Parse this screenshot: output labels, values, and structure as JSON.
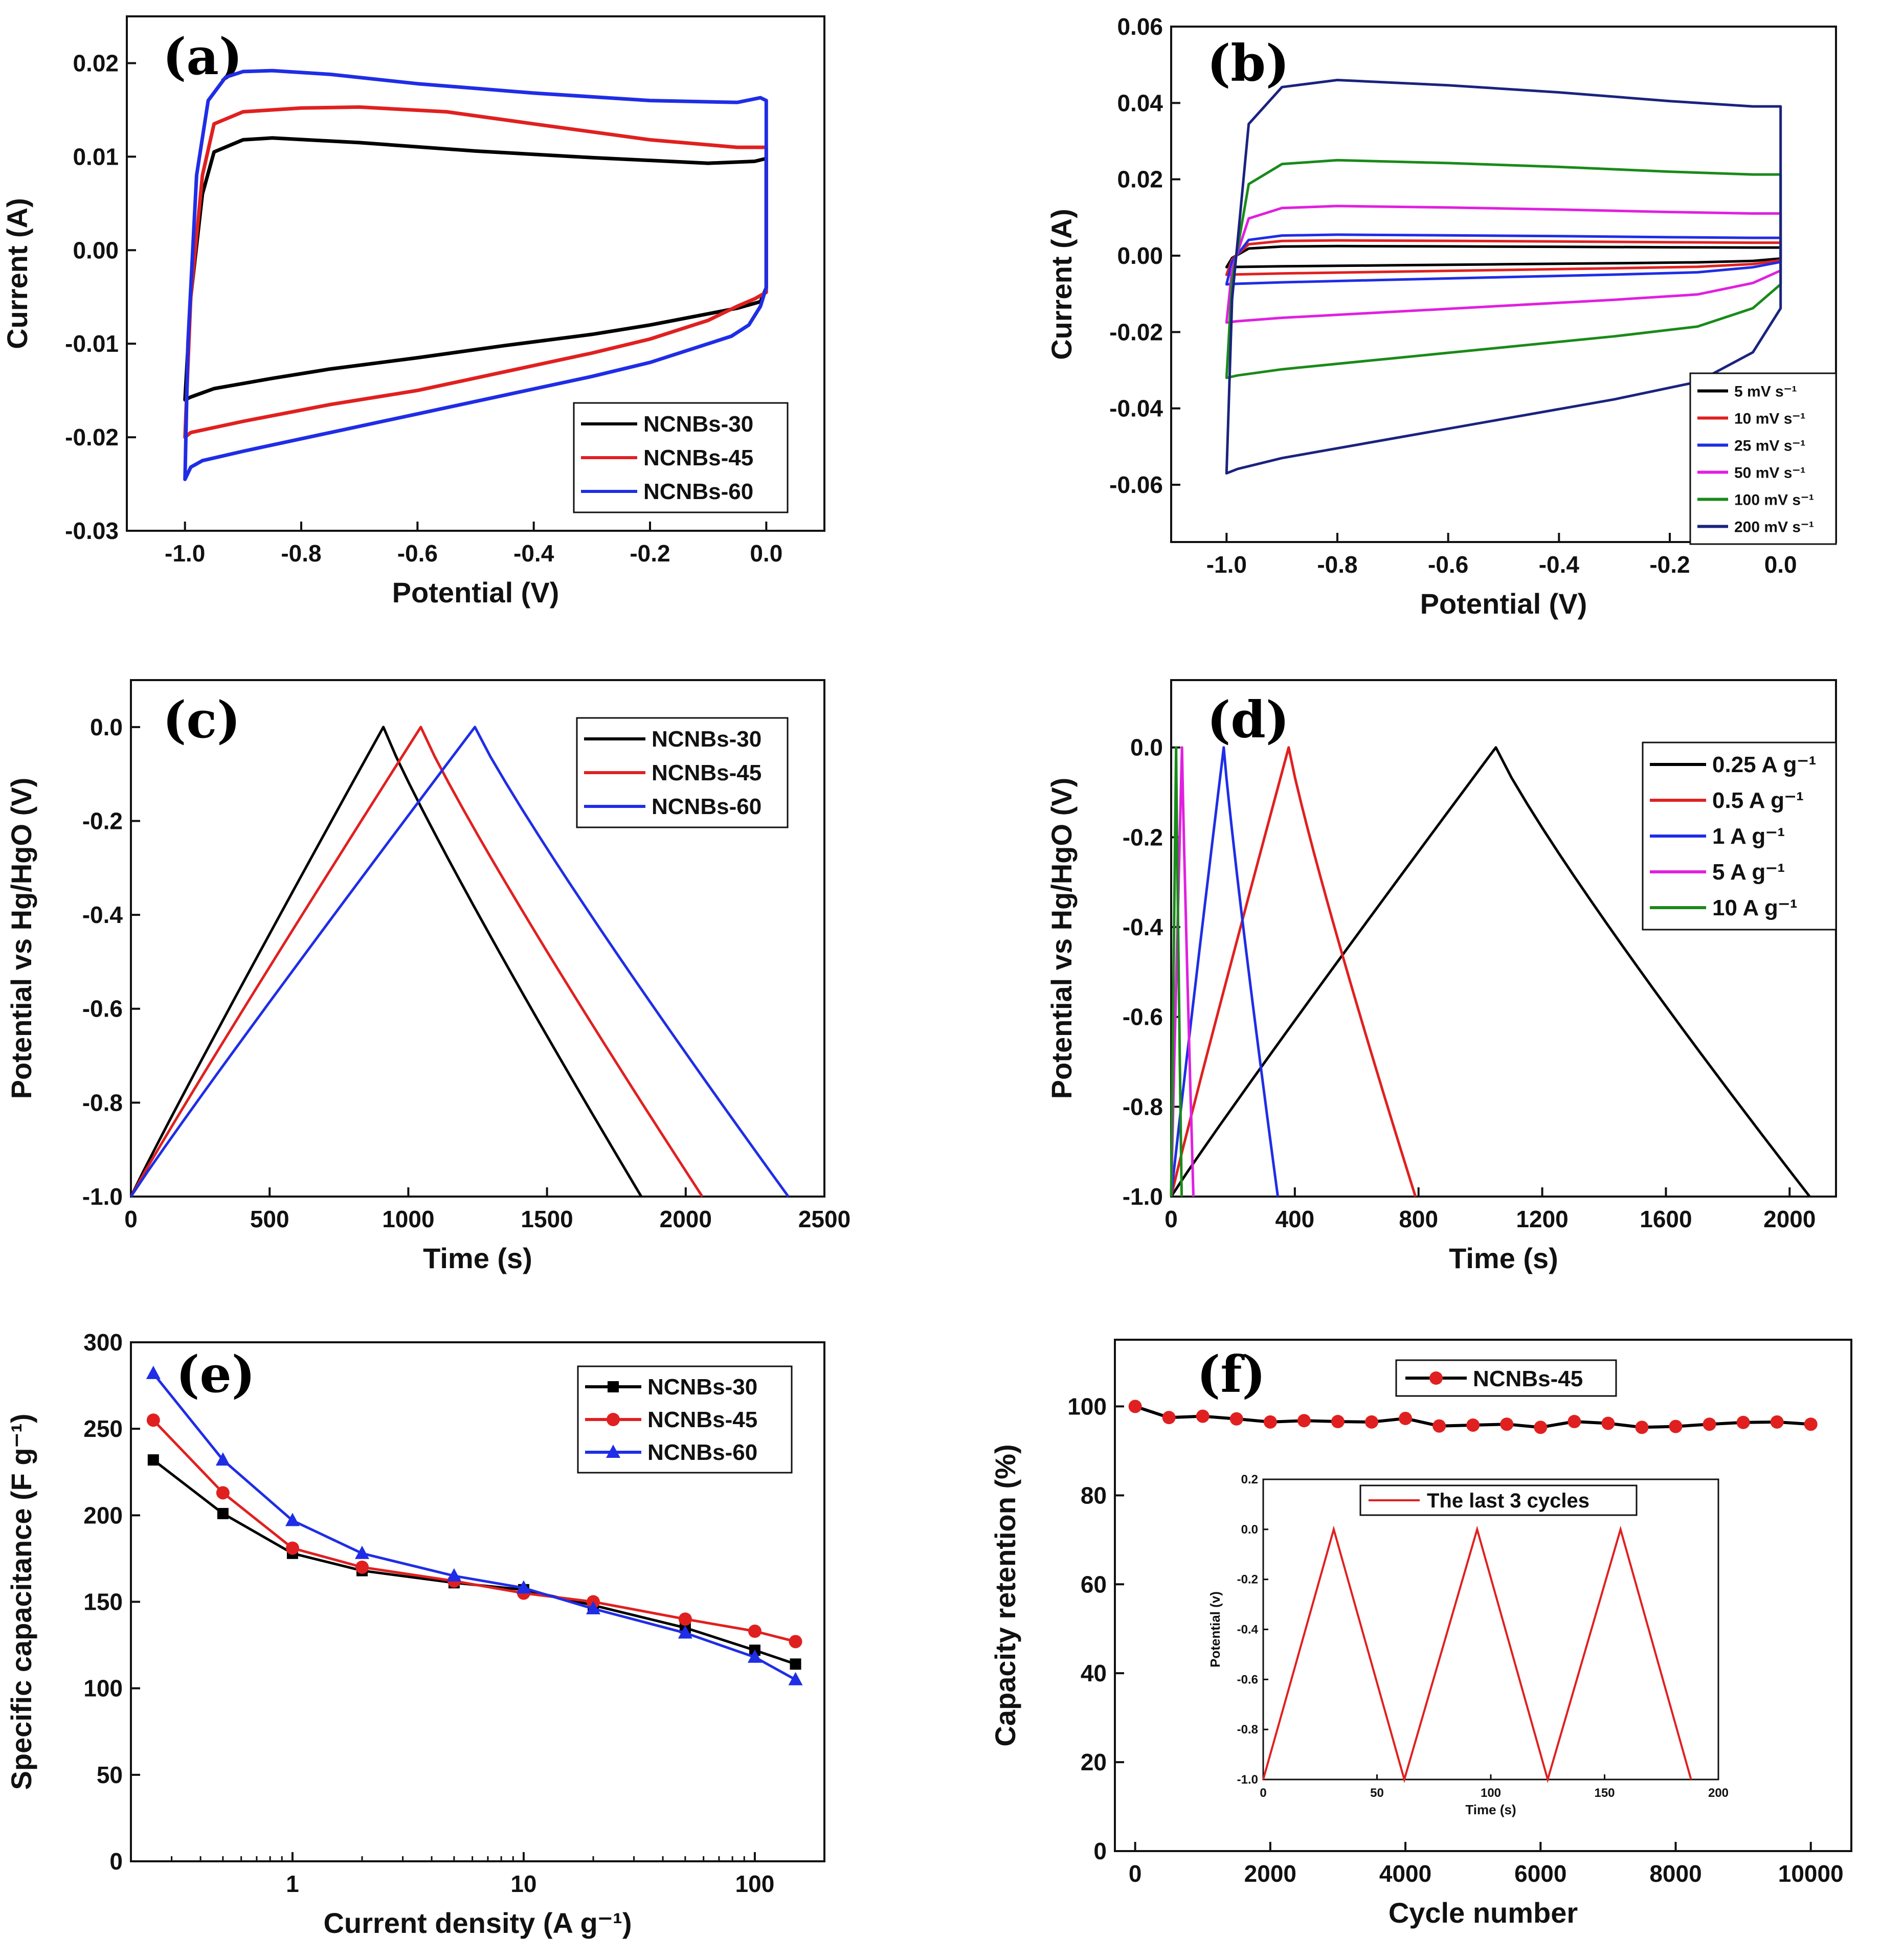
{
  "figure": {
    "panels": [
      {
        "id": "a",
        "label": "(a)",
        "xlabel": "Potential (V)",
        "ylabel": "Current (A)",
        "xlim": [
          -1.1,
          0.1
        ],
        "ylim": [
          -0.03,
          0.025
        ],
        "xticks": [
          -1.0,
          -0.8,
          -0.6,
          -0.4,
          -0.2,
          0.0
        ],
        "xtick_labels": [
          "-1.0",
          "-0.8",
          "-0.6",
          "-0.4",
          "-0.2",
          "0.0"
        ],
        "yticks": [
          -0.03,
          -0.02,
          -0.01,
          0.0,
          0.01,
          0.02
        ],
        "ytick_labels": [
          "-0.03",
          "-0.02",
          "-0.01",
          "0.00",
          "0.01",
          "0.02"
        ]
      },
      {
        "id": "b",
        "label": "(b)",
        "xlabel": "Potential (V)",
        "ylabel": "Current (A)",
        "xlim": [
          -1.1,
          0.1
        ],
        "ylim": [
          -0.075,
          0.06
        ],
        "xticks": [
          -1.0,
          -0.8,
          -0.6,
          -0.4,
          -0.2,
          0.0
        ],
        "xtick_labels": [
          "-1.0",
          "-0.8",
          "-0.6",
          "-0.4",
          "-0.2",
          "0.0"
        ],
        "yticks": [
          -0.06,
          -0.04,
          -0.02,
          0.0,
          0.02,
          0.04,
          0.06
        ],
        "ytick_labels": [
          "-0.06",
          "-0.04",
          "-0.02",
          "0.00",
          "0.02",
          "0.04",
          "0.06"
        ]
      },
      {
        "id": "c",
        "label": "(c)",
        "xlabel": "Time (s)",
        "ylabel": "Potential vs Hg/HgO (V)",
        "xlim": [
          0,
          2500
        ],
        "ylim": [
          -1.0,
          0.1
        ],
        "xticks": [
          0,
          500,
          1000,
          1500,
          2000,
          2500
        ],
        "xtick_labels": [
          "0",
          "500",
          "1000",
          "1500",
          "2000",
          "2500"
        ],
        "yticks": [
          -1.0,
          -0.8,
          -0.6,
          -0.4,
          -0.2,
          0.0
        ],
        "ytick_labels": [
          "-1.0",
          "-0.8",
          "-0.6",
          "-0.4",
          "-0.2",
          "0.0"
        ]
      },
      {
        "id": "d",
        "label": "(d)",
        "xlabel": "Time (s)",
        "ylabel": "Potential vs Hg/HgO (V)",
        "xlim": [
          0,
          2150
        ],
        "ylim": [
          -1.0,
          0.15
        ],
        "xticks": [
          0,
          400,
          800,
          1200,
          1600,
          2000
        ],
        "xtick_labels": [
          "0",
          "400",
          "800",
          "1200",
          "1600",
          "2000"
        ],
        "yticks": [
          -1.0,
          -0.8,
          -0.6,
          -0.4,
          -0.2,
          0.0
        ],
        "ytick_labels": [
          "-1.0",
          "-0.8",
          "-0.6",
          "-0.4",
          "-0.2",
          "0.0"
        ]
      },
      {
        "id": "e",
        "label": "(e)",
        "xlabel": "Current density (A g⁻¹)",
        "ylabel": "Specific capacitance (F g⁻¹)",
        "xscale": "log",
        "xlim": [
          0.2,
          200
        ],
        "ylim": [
          0,
          300
        ],
        "xticks": [
          1,
          10,
          100
        ],
        "xtick_labels": [
          "1",
          "10",
          "100"
        ],
        "yticks": [
          0,
          50,
          100,
          150,
          200,
          250,
          300
        ],
        "ytick_labels": [
          "0",
          "50",
          "100",
          "150",
          "200",
          "250",
          "300"
        ]
      },
      {
        "id": "f",
        "label": "(f)",
        "xlabel": "Cycle number",
        "ylabel": "Capacity retention (%)",
        "xlim": [
          -300,
          10600
        ],
        "ylim": [
          0,
          115
        ],
        "xticks": [
          0,
          2000,
          4000,
          6000,
          8000,
          10000
        ],
        "xtick_labels": [
          "0",
          "2000",
          "4000",
          "6000",
          "8000",
          "10000"
        ],
        "yticks": [
          0,
          20,
          40,
          60,
          80,
          100
        ],
        "ytick_labels": [
          "0",
          "20",
          "40",
          "60",
          "80",
          "100"
        ]
      }
    ]
  },
  "chart_data": [
    {
      "panel": "a",
      "type": "line",
      "title": "",
      "xlabel": "Potential (V)",
      "ylabel": "Current (A)",
      "legend": "bottom-right",
      "series": [
        {
          "name": "NCNBs-30",
          "color": "#000000",
          "x": [
            -1.0,
            -0.99,
            -0.97,
            -0.95,
            -0.9,
            -0.85,
            -0.7,
            -0.5,
            -0.3,
            -0.1,
            -0.02,
            0.0,
            0.0,
            -0.01,
            -0.05,
            -0.1,
            -0.2,
            -0.3,
            -0.45,
            -0.6,
            -0.75,
            -0.85,
            -0.95,
            -0.99,
            -1.0
          ],
          "y": [
            -0.016,
            -0.005,
            0.006,
            0.0105,
            0.0118,
            0.012,
            0.0115,
            0.0106,
            0.0099,
            0.0093,
            0.0095,
            0.0098,
            -0.004,
            -0.0055,
            -0.0062,
            -0.0068,
            -0.008,
            -0.009,
            -0.0102,
            -0.0115,
            -0.0127,
            -0.0137,
            -0.0148,
            -0.0157,
            -0.016
          ]
        },
        {
          "name": "NCNBs-45",
          "color": "#e02020",
          "x": [
            -1.0,
            -0.99,
            -0.97,
            -0.95,
            -0.9,
            -0.8,
            -0.7,
            -0.55,
            -0.4,
            -0.2,
            -0.05,
            0.0,
            0.0,
            -0.02,
            -0.05,
            -0.1,
            -0.2,
            -0.3,
            -0.45,
            -0.6,
            -0.75,
            -0.9,
            -0.99,
            -1.0
          ],
          "y": [
            -0.02,
            -0.005,
            0.008,
            0.0135,
            0.0148,
            0.0152,
            0.0153,
            0.0148,
            0.0135,
            0.0118,
            0.011,
            0.011,
            -0.0045,
            -0.0052,
            -0.006,
            -0.0075,
            -0.0095,
            -0.011,
            -0.013,
            -0.015,
            -0.0165,
            -0.0183,
            -0.0195,
            -0.02
          ]
        },
        {
          "name": "NCNBs-60",
          "color": "#1f2de6",
          "x": [
            -1.0,
            -0.995,
            -0.98,
            -0.96,
            -0.93,
            -0.9,
            -0.85,
            -0.75,
            -0.6,
            -0.4,
            -0.2,
            -0.05,
            -0.01,
            0.0,
            0.0,
            -0.01,
            -0.03,
            -0.06,
            -0.1,
            -0.2,
            -0.3,
            -0.45,
            -0.6,
            -0.75,
            -0.9,
            -0.97,
            -0.99,
            -1.0
          ],
          "y": [
            -0.0245,
            -0.01,
            0.008,
            0.016,
            0.0185,
            0.0191,
            0.0192,
            0.0188,
            0.0178,
            0.0168,
            0.016,
            0.0158,
            0.0163,
            0.016,
            -0.004,
            -0.006,
            -0.008,
            -0.0092,
            -0.01,
            -0.012,
            -0.0135,
            -0.0155,
            -0.0175,
            -0.0195,
            -0.0215,
            -0.0225,
            -0.0232,
            -0.0245
          ]
        }
      ]
    },
    {
      "panel": "b",
      "type": "line",
      "title": "",
      "xlabel": "Potential (V)",
      "ylabel": "Current (A)",
      "legend": "bottom-right",
      "series": [
        {
          "name": "5 mV s⁻¹",
          "color": "#000000",
          "peak_current_anodic": 0.0025,
          "peak_current_cathodic": -0.003
        },
        {
          "name": "10 mV s⁻¹",
          "color": "#e02020",
          "peak_current_anodic": 0.004,
          "peak_current_cathodic": -0.005
        },
        {
          "name": "25 mV s⁻¹",
          "color": "#1f2de6",
          "peak_current_anodic": 0.0055,
          "peak_current_cathodic": -0.0075
        },
        {
          "name": "50 mV s⁻¹",
          "color": "#e020e0",
          "peak_current_anodic": 0.013,
          "peak_current_cathodic": -0.0175
        },
        {
          "name": "100 mV s⁻¹",
          "color": "#1a8a1a",
          "peak_current_anodic": 0.025,
          "peak_current_cathodic": -0.032
        },
        {
          "name": "200 mV s⁻¹",
          "color": "#1a237e",
          "peak_current_anodic": 0.046,
          "peak_current_cathodic": -0.057
        }
      ]
    },
    {
      "panel": "c",
      "type": "line",
      "title": "",
      "xlabel": "Time (s)",
      "ylabel": "Potential vs Hg/HgO (V)",
      "legend": "top-right",
      "series": [
        {
          "name": "NCNBs-30",
          "color": "#000000",
          "charge_end_s": 910,
          "discharge_end_s": 1840
        },
        {
          "name": "NCNBs-45",
          "color": "#e02020",
          "charge_end_s": 1045,
          "discharge_end_s": 2060
        },
        {
          "name": "NCNBs-60",
          "color": "#1f2de6",
          "charge_end_s": 1240,
          "discharge_end_s": 2370
        }
      ]
    },
    {
      "panel": "d",
      "type": "line",
      "title": "",
      "xlabel": "Time (s)",
      "ylabel": "Potential vs Hg/HgO (V)",
      "legend": "top-right",
      "series": [
        {
          "name": "0.25 A g⁻¹",
          "color": "#000000",
          "charge_end_s": 1050,
          "discharge_end_s": 2065
        },
        {
          "name": "0.5 A g⁻¹",
          "color": "#e02020",
          "charge_end_s": 380,
          "discharge_end_s": 790
        },
        {
          "name": "1 A g⁻¹",
          "color": "#1f2de6",
          "charge_end_s": 170,
          "discharge_end_s": 345
        },
        {
          "name": "5 A g⁻¹",
          "color": "#e020e0",
          "charge_end_s": 35,
          "discharge_end_s": 72
        },
        {
          "name": "10 A g⁻¹",
          "color": "#1a8a1a",
          "charge_end_s": 16,
          "discharge_end_s": 34
        }
      ]
    },
    {
      "panel": "e",
      "type": "line",
      "title": "",
      "xlabel": "Current density (A g⁻¹)",
      "ylabel": "Specific capacitance (F g⁻¹)",
      "xscale": "log",
      "legend": "top-right",
      "categories": [
        0.25,
        0.5,
        1,
        2,
        5,
        10,
        20,
        50,
        100,
        150
      ],
      "series": [
        {
          "name": "NCNBs-30",
          "color": "#000000",
          "marker": "square",
          "values": [
            232,
            201,
            178,
            168,
            161,
            157,
            148,
            135,
            122,
            114
          ]
        },
        {
          "name": "NCNBs-45",
          "color": "#e02020",
          "marker": "circle",
          "values": [
            255,
            213,
            181,
            170,
            162,
            155,
            150,
            140,
            133,
            127
          ]
        },
        {
          "name": "NCNBs-60",
          "color": "#1f2de6",
          "marker": "triangle",
          "values": [
            282,
            232,
            197,
            178,
            165,
            158,
            146,
            132,
            118,
            105
          ]
        }
      ]
    },
    {
      "panel": "f",
      "type": "line",
      "title": "",
      "xlabel": "Cycle number",
      "ylabel": "Capacity retention (%)",
      "legend": "top-center",
      "series": [
        {
          "name": "NCNBs-45",
          "color": "#000000",
          "marker_color": "#e02020",
          "x": [
            0,
            500,
            1000,
            1500,
            2000,
            2500,
            3000,
            3500,
            4000,
            4500,
            5000,
            5500,
            6000,
            6500,
            7000,
            7500,
            8000,
            8500,
            9000,
            9500,
            10000
          ],
          "y": [
            100,
            97.5,
            97.8,
            97.2,
            96.5,
            96.8,
            96.6,
            96.5,
            97.3,
            95.6,
            95.8,
            96.0,
            95.3,
            96.6,
            96.2,
            95.3,
            95.5,
            96.0,
            96.4,
            96.5,
            96.0
          ]
        }
      ],
      "inset": {
        "type": "line",
        "xlabel": "Time (s)",
        "ylabel": "Potential (v)",
        "xlim": [
          0,
          200
        ],
        "ylim": [
          -1.0,
          0.2
        ],
        "xticks": [
          0,
          50,
          100,
          150,
          200
        ],
        "xtick_labels": [
          "0",
          "50",
          "100",
          "150",
          "200"
        ],
        "yticks": [
          -1.0,
          -0.8,
          -0.6,
          -0.4,
          -0.2,
          0.0,
          0.2
        ],
        "ytick_labels": [
          "-1.0",
          "-0.8",
          "-0.6",
          "-0.4",
          "-0.2",
          "0.0",
          "0.2"
        ],
        "series": [
          {
            "name": "The last 3 cycles",
            "color": "#e02020",
            "x": [
              0,
              31,
              62,
              94,
              125,
              157,
              188
            ],
            "y": [
              -1.0,
              0.0,
              -1.0,
              0.0,
              -1.0,
              0.0,
              -1.0
            ]
          }
        ]
      }
    }
  ]
}
